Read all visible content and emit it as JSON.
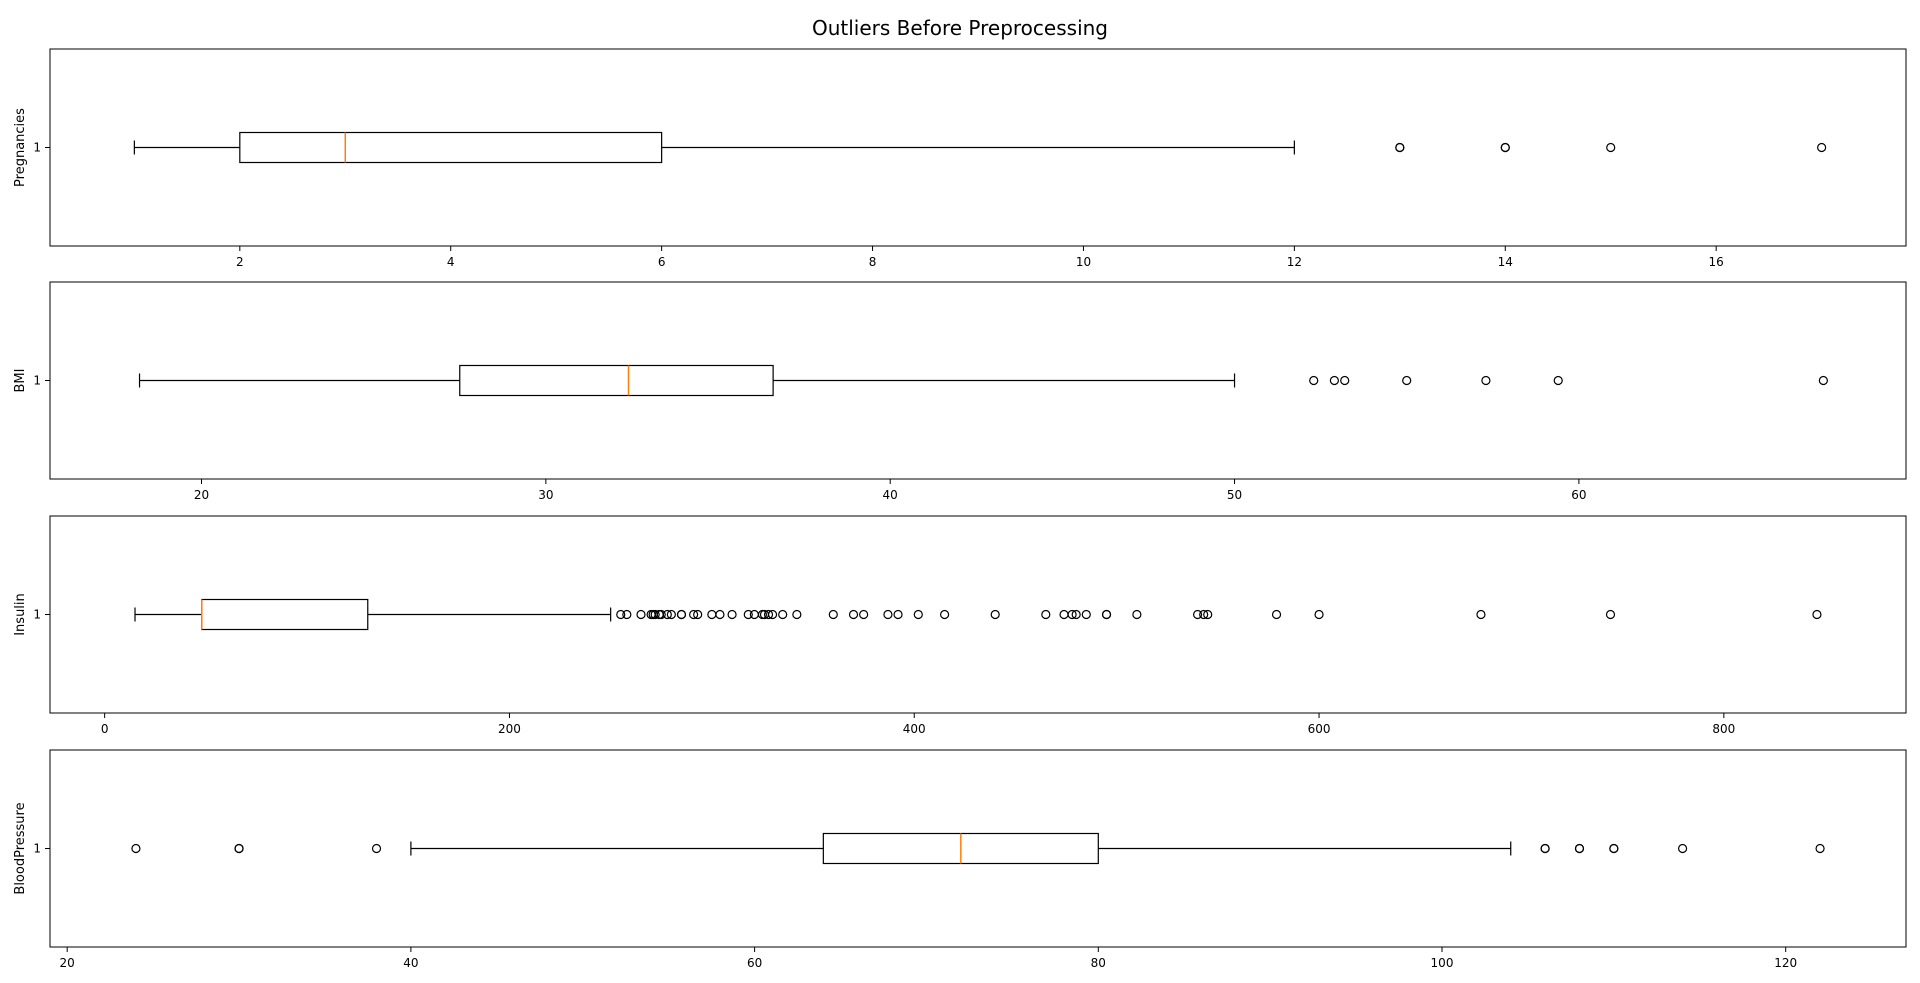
{
  "chart_data": {
    "title": "Outliers Before Preprocessing",
    "type": "boxplot",
    "orientation": "horizontal",
    "colors": {
      "box": "#000000",
      "median": "#ff7f0e",
      "flier": "#000000"
    },
    "panels": [
      {
        "ylabel": "Pregnancies",
        "ytick": "1",
        "xlim": [
          0.2,
          17.8
        ],
        "xticks": [
          2,
          4,
          6,
          8,
          10,
          12,
          14,
          16
        ],
        "whisker_low": 1,
        "q1": 2,
        "median": 3,
        "q3": 6,
        "whisker_high": 12,
        "outliers": [
          13,
          13,
          14,
          14,
          15,
          17
        ]
      },
      {
        "ylabel": "BMI",
        "ytick": "1",
        "xlim": [
          15.6,
          69.5
        ],
        "xticks": [
          20,
          30,
          40,
          50,
          60
        ],
        "whisker_low": 18.2,
        "q1": 27.5,
        "median": 32.4,
        "q3": 36.6,
        "whisker_high": 50,
        "outliers": [
          52.3,
          52.9,
          53.2,
          55,
          57.3,
          59.4,
          67.1
        ]
      },
      {
        "ylabel": "Insulin",
        "ytick": "1",
        "xlim": [
          -27,
          890
        ],
        "xticks": [
          0,
          200,
          400,
          600,
          800
        ],
        "whisker_low": 15,
        "q1": 48,
        "median": 48,
        "q3": 130,
        "whisker_high": 250,
        "outliers": [
          255,
          258,
          265,
          270,
          271,
          272,
          274,
          275,
          278,
          280,
          285,
          285,
          291,
          293,
          300,
          304,
          310,
          318,
          321,
          325,
          326,
          328,
          330,
          335,
          342,
          360,
          370,
          375,
          387,
          392,
          402,
          415,
          440,
          465,
          474,
          478,
          480,
          485,
          495,
          495,
          510,
          540,
          543,
          545,
          579,
          600,
          680,
          744,
          846
        ]
      },
      {
        "ylabel": "BloodPressure",
        "ytick": "1",
        "xlim": [
          19,
          127
        ],
        "xticks": [
          20,
          40,
          60,
          80,
          100,
          120
        ],
        "whisker_low": 40,
        "q1": 64,
        "median": 72,
        "q3": 80,
        "whisker_high": 104,
        "outliers": [
          24,
          30,
          30,
          38,
          106,
          106,
          108,
          108,
          110,
          110,
          114,
          122
        ]
      }
    ]
  }
}
